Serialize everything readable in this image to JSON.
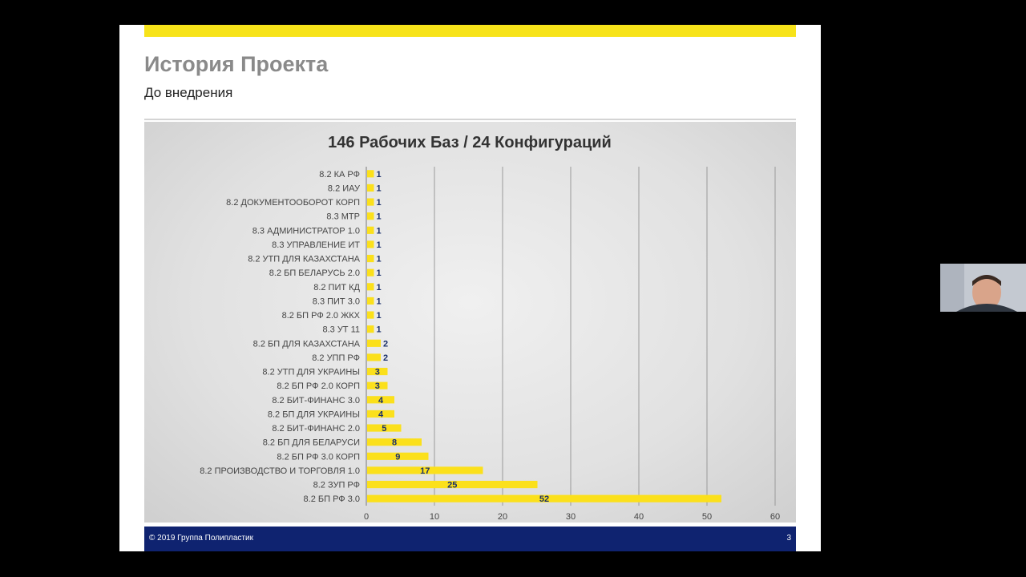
{
  "slide": {
    "title": "История Проекта",
    "subtitle": "До внедрения",
    "footer": "©  2019 Группа Полипластик",
    "page_number": "3"
  },
  "colors": {
    "accent_yellow": "#f7e31a",
    "bar": "#fbe01b",
    "footer_blue": "#0f2370",
    "label_text": "#1a2f6b"
  },
  "chart_data": {
    "type": "bar",
    "orientation": "horizontal",
    "title": "146 Рабочих Баз / 24 Конфигураций",
    "categories": [
      "8.2 КА РФ",
      "8.2 ИАУ",
      "8.2 ДОКУМЕНТООБОРОТ КОРП",
      "8.3 МТР",
      "8.3 АДМИНИСТРАТОР 1.0",
      "8.3 УПРАВЛЕНИЕ ИТ",
      "8.2 УТП ДЛЯ КАЗАХСТАНА",
      "8.2 БП БЕЛАРУСЬ 2.0",
      "8.2 ПИТ КД",
      "8.3 ПИТ 3.0",
      "8.2 БП РФ 2.0 ЖКХ",
      "8.3 УТ 11",
      "8.2 БП ДЛЯ КАЗАХСТАНА",
      "8.2 УПП РФ",
      "8.2 УТП ДЛЯ УКРАИНЫ",
      "8.2 БП РФ 2.0 КОРП",
      "8.2 БИТ-ФИНАНС 3.0",
      "8.2 БП ДЛЯ УКРАИНЫ",
      "8.2 БИТ-ФИНАНС 2.0",
      "8.2 БП ДЛЯ БЕЛАРУСИ",
      "8.2 БП РФ 3.0 КОРП",
      "8.2 ПРОИЗВОДСТВО И ТОРГОВЛЯ 1.0",
      "8.2 ЗУП РФ",
      "8.2 БП РФ 3.0"
    ],
    "values": [
      1,
      1,
      1,
      1,
      1,
      1,
      1,
      1,
      1,
      1,
      1,
      1,
      2,
      2,
      3,
      3,
      4,
      4,
      5,
      8,
      9,
      17,
      25,
      52
    ],
    "xlim": [
      0,
      60
    ],
    "xticks": [
      0,
      10,
      20,
      30,
      40,
      50,
      60
    ],
    "grid": "vertical",
    "data_labels": true
  }
}
